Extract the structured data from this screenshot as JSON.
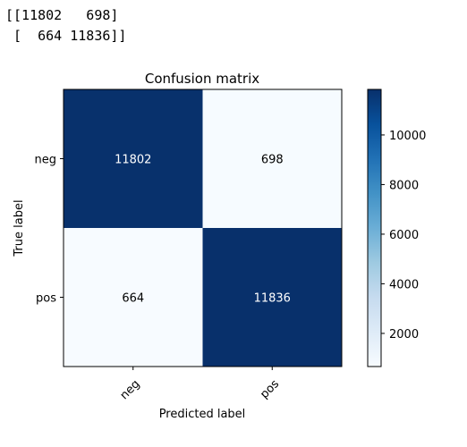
{
  "console_output": {
    "lines": [
      "[[11802   698]",
      " [  664 11836]]"
    ]
  },
  "chart_data": {
    "type": "heatmap",
    "title": "Confusion matrix",
    "xlabel": "Predicted label",
    "ylabel": "True label",
    "x_categories": [
      "neg",
      "pos"
    ],
    "y_categories": [
      "neg",
      "pos"
    ],
    "values": [
      [
        11802,
        698
      ],
      [
        664,
        11836
      ]
    ],
    "colormap": "Blues",
    "color_low": "#f7fbff",
    "color_high": "#08306b",
    "colorbar_range": [
      664,
      11836
    ],
    "colorbar_ticks": [
      2000,
      4000,
      6000,
      8000,
      10000
    ],
    "text_color_dark_cell": "#ffffff",
    "text_color_light_cell": "#000000",
    "grid": false
  }
}
